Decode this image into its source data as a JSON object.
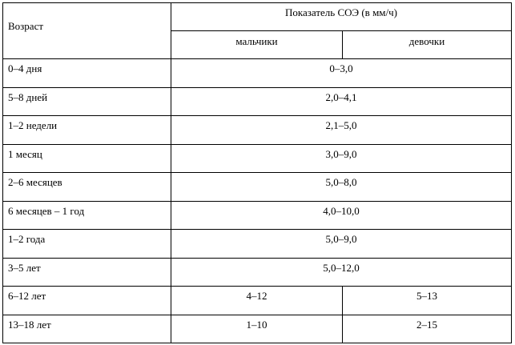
{
  "table": {
    "header": {
      "age": "Возраст",
      "indicator": "Показатель СОЭ (в мм/ч)",
      "boys": "мальчики",
      "girls": "девочки"
    },
    "rows": [
      [
        "0–4 дня",
        "0–3,0"
      ],
      [
        "5–8 дней",
        "2,0–4,1"
      ],
      [
        "1–2 недели",
        "2,1–5,0"
      ],
      [
        "1 месяц",
        "3,0–9,0"
      ],
      [
        "2–6 месяцев",
        "5,0–8,0"
      ],
      [
        "6 месяцев – 1 год",
        "4,0–10,0"
      ],
      [
        "1–2 года",
        "5,0–9,0"
      ],
      [
        "3–5 лет",
        "5,0–12,0"
      ],
      [
        "6–12 лет",
        "4–12",
        "5–13"
      ],
      [
        "13–18 лет",
        "1–10",
        "2–15"
      ]
    ]
  }
}
